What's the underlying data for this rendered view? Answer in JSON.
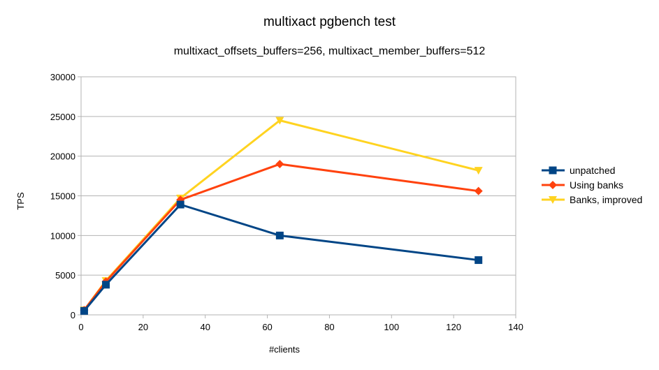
{
  "chart_data": {
    "type": "line",
    "title": "multixact pgbench test",
    "subtitle": "multixact_offsets_buffers=256, multixact_member_buffers=512",
    "xlabel": "#clients",
    "ylabel": "TPS",
    "xlim": [
      0,
      140
    ],
    "ylim": [
      0,
      30000
    ],
    "xticks": [
      0,
      20,
      40,
      60,
      80,
      100,
      120,
      140
    ],
    "yticks": [
      0,
      5000,
      10000,
      15000,
      20000,
      25000,
      30000
    ],
    "grid": "horizontal",
    "legend_position": "right",
    "series": [
      {
        "name": "unpatched",
        "color": "#004586",
        "marker": "square",
        "points": [
          {
            "x": 1,
            "y": 500
          },
          {
            "x": 8,
            "y": 3800
          },
          {
            "x": 32,
            "y": 13900
          },
          {
            "x": 64,
            "y": 10000
          },
          {
            "x": 128,
            "y": 6900
          }
        ]
      },
      {
        "name": "Using banks",
        "color": "#ff420e",
        "marker": "diamond",
        "points": [
          {
            "x": 1,
            "y": 600
          },
          {
            "x": 8,
            "y": 4200
          },
          {
            "x": 32,
            "y": 14500
          },
          {
            "x": 64,
            "y": 19000
          },
          {
            "x": 128,
            "y": 15600
          }
        ]
      },
      {
        "name": "Banks, improved",
        "color": "#ffd320",
        "marker": "triangle-down",
        "points": [
          {
            "x": 1,
            "y": 600
          },
          {
            "x": 8,
            "y": 4300
          },
          {
            "x": 32,
            "y": 14700
          },
          {
            "x": 64,
            "y": 24500
          },
          {
            "x": 128,
            "y": 18200
          }
        ]
      }
    ]
  }
}
